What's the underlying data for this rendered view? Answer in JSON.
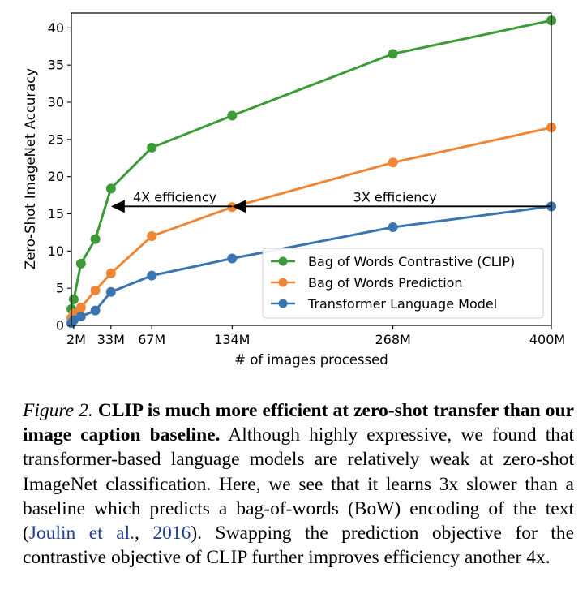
{
  "chart_data": {
    "type": "line",
    "ylabel": "Zero-Shot ImageNet Accuracy",
    "xlabel": "# of images processed",
    "xlim": [
      0,
      400
    ],
    "ylim": [
      0,
      42
    ],
    "x_tick_values": [
      2,
      33,
      67,
      134,
      268,
      400
    ],
    "x_tick_labels": [
      "2M",
      "33M",
      "67M",
      "134M",
      "268M",
      "400M"
    ],
    "y_ticks": [
      0,
      5,
      10,
      15,
      20,
      25,
      30,
      35,
      40
    ],
    "grid": false,
    "legend_position": "lower-right",
    "series": [
      {
        "name": "Bag of Words Contrastive (CLIP)",
        "color": "#3c9a37",
        "x": [
          0,
          2,
          8,
          20,
          33,
          67,
          134,
          268,
          400
        ],
        "y": [
          2.2,
          3.5,
          8.3,
          11.6,
          18.4,
          23.9,
          28.2,
          36.5,
          41.0
        ]
      },
      {
        "name": "Bag of Words Prediction",
        "color": "#ef8636",
        "x": [
          0,
          2,
          8,
          20,
          33,
          67,
          134,
          268,
          400
        ],
        "y": [
          1.0,
          1.6,
          2.4,
          4.7,
          7.0,
          12.0,
          15.9,
          21.9,
          26.6
        ]
      },
      {
        "name": "Transformer Language Model",
        "color": "#3b75af",
        "x": [
          0,
          2,
          8,
          20,
          33,
          67,
          134,
          268,
          400
        ],
        "y": [
          0.3,
          0.7,
          1.2,
          2.0,
          4.5,
          6.7,
          9.0,
          13.2,
          16.0
        ]
      }
    ],
    "annotations": [
      {
        "text": "4X efficiency",
        "x_from": 134,
        "x_to": 33,
        "y": 16
      },
      {
        "text": "3X efficiency",
        "x_from": 400,
        "x_to": 134,
        "y": 16
      }
    ]
  },
  "caption": {
    "label": "Figure 2.",
    "bold_text": "CLIP is much more efficient at zero-shot transfer than our image caption baseline.",
    "text_before_cite": "Although highly expressive, we found that transformer-based language models are relatively weak at zero-shot ImageNet classification. Here, we see that it learns 3x slower than a baseline which predicts a bag-of-words (BoW) encoding of the text (",
    "cite_authors": "Joulin et al.",
    "cite_sep": ", ",
    "cite_year": "2016",
    "text_after_cite": "). Swapping the prediction objective for the contrastive objective of CLIP further improves efficiency another 4x."
  }
}
